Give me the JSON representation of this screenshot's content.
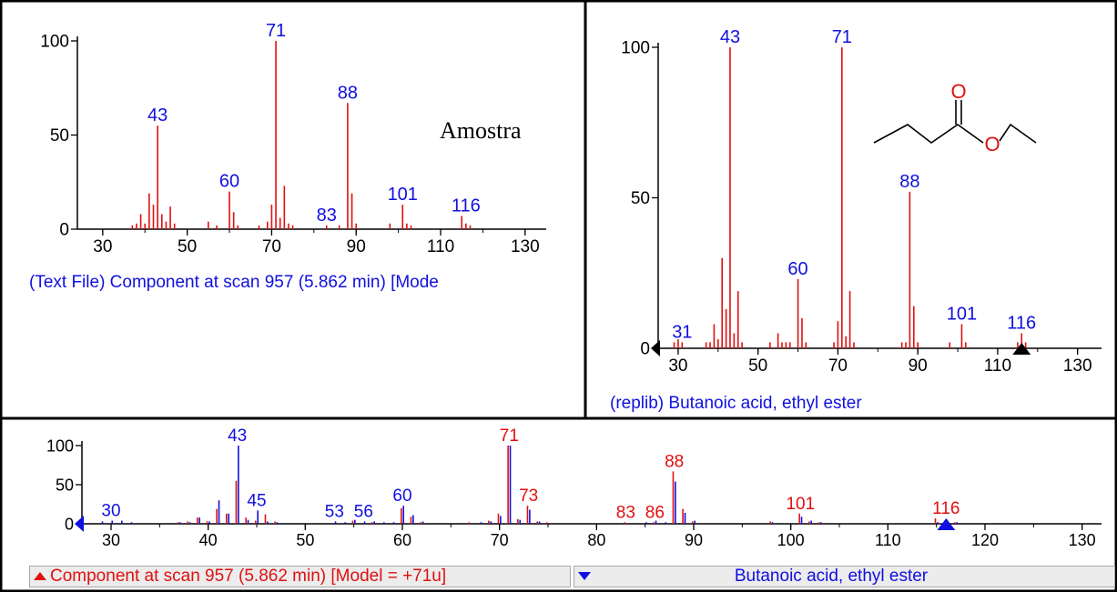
{
  "colors": {
    "sample": "#e01010",
    "library": "#1010e0",
    "label_blue": "#1010e0",
    "label_red": "#e01010"
  },
  "chart_data": [
    {
      "type": "bar",
      "id": "sample",
      "title": "",
      "annotation": "Amostra",
      "caption": "(Text File) Component at scan 957 (5.862 min) [Mode",
      "xlim": [
        24,
        135
      ],
      "ylim": [
        0,
        100
      ],
      "xticks": [
        "30",
        "50",
        "70",
        "90",
        "110",
        "130"
      ],
      "yticks": [
        "0",
        "50",
        "100"
      ],
      "series": [
        {
          "color": "#e01010",
          "x": [
            37,
            38,
            39,
            40,
            41,
            42,
            43,
            44,
            45,
            46,
            47,
            55,
            57,
            60,
            61,
            62,
            67,
            69,
            70,
            71,
            72,
            73,
            74,
            75,
            83,
            86,
            88,
            89,
            90,
            98,
            101,
            102,
            103,
            115,
            116,
            117
          ],
          "y": [
            2,
            3,
            8,
            3,
            19,
            13,
            55,
            8,
            4,
            12,
            3,
            4,
            2,
            20,
            9,
            2,
            2,
            4,
            13,
            100,
            6,
            23,
            3,
            2,
            2,
            2,
            67,
            19,
            3,
            3,
            13,
            3,
            2,
            7,
            3,
            2
          ]
        }
      ],
      "peak_labels": [
        {
          "x": 43,
          "y": 55,
          "text": "43"
        },
        {
          "x": 60,
          "y": 20,
          "text": "60"
        },
        {
          "x": 71,
          "y": 100,
          "text": "71"
        },
        {
          "x": 83,
          "y": 2,
          "text": "83"
        },
        {
          "x": 88,
          "y": 67,
          "text": "88"
        },
        {
          "x": 101,
          "y": 13,
          "text": "101"
        },
        {
          "x": 116,
          "y": 7,
          "text": "116"
        }
      ]
    },
    {
      "type": "bar",
      "id": "library",
      "title": "",
      "caption": "(replib) Butanoic acid, ethyl ester",
      "structure_atom": "O",
      "xlim": [
        25,
        136
      ],
      "ylim": [
        0,
        100
      ],
      "xticks": [
        "30",
        "50",
        "70",
        "90",
        "110",
        "130"
      ],
      "yticks": [
        "0",
        "50",
        "100"
      ],
      "series": [
        {
          "color": "#e01010",
          "x": [
            29,
            30,
            31,
            37,
            38,
            39,
            40,
            41,
            42,
            43,
            44,
            45,
            46,
            53,
            55,
            56,
            57,
            58,
            60,
            61,
            62,
            69,
            70,
            71,
            72,
            73,
            74,
            86,
            87,
            88,
            89,
            90,
            98,
            101,
            102,
            115,
            116,
            117
          ],
          "y": [
            2,
            3,
            2,
            2,
            2,
            8,
            3,
            30,
            13,
            100,
            5,
            19,
            2,
            2,
            5,
            2,
            2,
            2,
            23,
            10,
            2,
            2,
            9,
            100,
            4,
            19,
            2,
            2,
            2,
            52,
            14,
            2,
            2,
            8,
            2,
            2,
            5,
            2
          ]
        }
      ],
      "peak_labels": [
        {
          "x": 31,
          "y": 2,
          "text": "31"
        },
        {
          "x": 43,
          "y": 100,
          "text": "43"
        },
        {
          "x": 60,
          "y": 23,
          "text": "60"
        },
        {
          "x": 71,
          "y": 100,
          "text": "71"
        },
        {
          "x": 88,
          "y": 52,
          "text": "88"
        },
        {
          "x": 101,
          "y": 8,
          "text": "101"
        },
        {
          "x": 116,
          "y": 5,
          "text": "116"
        }
      ]
    },
    {
      "type": "bar",
      "id": "comparison",
      "title": "",
      "xlim": [
        27,
        132
      ],
      "ylim": [
        0,
        100
      ],
      "xticks": [
        "30",
        "40",
        "50",
        "60",
        "70",
        "80",
        "90",
        "100",
        "110",
        "120",
        "130"
      ],
      "yticks": [
        "0",
        "50",
        "100"
      ],
      "series": [
        {
          "name": "Component at scan 957 (5.862 min) [Model = +71u]",
          "color": "#e01010",
          "x": [
            37,
            38,
            39,
            40,
            41,
            42,
            43,
            44,
            45,
            46,
            47,
            55,
            57,
            60,
            61,
            62,
            67,
            69,
            70,
            71,
            72,
            73,
            74,
            75,
            83,
            86,
            88,
            89,
            90,
            98,
            101,
            102,
            103,
            115,
            116,
            117
          ],
          "y": [
            2,
            3,
            8,
            3,
            19,
            13,
            55,
            8,
            4,
            12,
            3,
            4,
            2,
            20,
            9,
            2,
            2,
            4,
            13,
            100,
            6,
            23,
            3,
            2,
            2,
            2,
            67,
            19,
            3,
            3,
            13,
            3,
            2,
            7,
            3,
            2
          ]
        },
        {
          "name": "Butanoic acid, ethyl ester",
          "color": "#1010e0",
          "x": [
            29,
            30,
            31,
            32,
            37,
            38,
            39,
            40,
            41,
            42,
            43,
            44,
            45,
            46,
            47,
            53,
            54,
            55,
            56,
            57,
            58,
            59,
            60,
            61,
            62,
            68,
            69,
            70,
            71,
            72,
            73,
            74,
            85,
            86,
            87,
            88,
            89,
            90,
            98,
            101,
            102,
            103,
            115,
            116,
            117
          ],
          "y": [
            3,
            4,
            4,
            2,
            2,
            2,
            8,
            3,
            30,
            13,
            100,
            5,
            17,
            3,
            2,
            3,
            2,
            5,
            3,
            3,
            2,
            2,
            23,
            11,
            3,
            2,
            3,
            10,
            100,
            5,
            18,
            3,
            2,
            4,
            2,
            54,
            14,
            4,
            2,
            9,
            4,
            2,
            2,
            5,
            2
          ]
        }
      ],
      "peak_labels": [
        {
          "x": 30,
          "y": 4,
          "text": "30",
          "color": "#1010e0"
        },
        {
          "x": 43,
          "y": 100,
          "text": "43",
          "color": "#1010e0"
        },
        {
          "x": 45,
          "y": 17,
          "text": "45",
          "color": "#1010e0"
        },
        {
          "x": 53,
          "y": 3,
          "text": "53",
          "color": "#1010e0"
        },
        {
          "x": 56,
          "y": 3,
          "text": "56",
          "color": "#1010e0"
        },
        {
          "x": 60,
          "y": 23,
          "text": "60",
          "color": "#1010e0"
        },
        {
          "x": 71,
          "y": 100,
          "text": "71",
          "color": "#e01010"
        },
        {
          "x": 73,
          "y": 23,
          "text": "73",
          "color": "#e01010"
        },
        {
          "x": 83,
          "y": 2,
          "text": "83",
          "color": "#e01010"
        },
        {
          "x": 86,
          "y": 2,
          "text": "86",
          "color": "#e01010"
        },
        {
          "x": 88,
          "y": 67,
          "text": "88",
          "color": "#e01010"
        },
        {
          "x": 101,
          "y": 13,
          "text": "101",
          "color": "#e01010"
        },
        {
          "x": 116,
          "y": 7,
          "text": "116",
          "color": "#e01010"
        }
      ]
    }
  ],
  "legend": {
    "sample_label": "Component at scan 957 (5.862 min) [Model = +71u]",
    "library_label": "Butanoic acid, ethyl ester"
  }
}
